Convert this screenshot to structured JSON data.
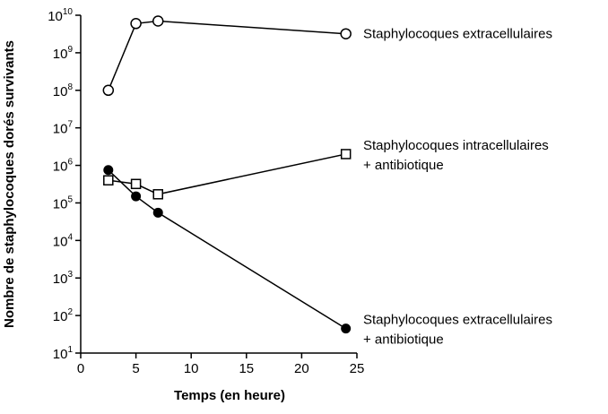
{
  "chart_data": {
    "type": "line",
    "xlabel": "Temps (en heure)",
    "ylabel": "Nombre de staphylocoques dorés survivants",
    "xlim": [
      0,
      25
    ],
    "xticks": [
      0,
      5,
      10,
      15,
      20,
      25
    ],
    "yscale": "log",
    "ylim": [
      10,
      10000000000
    ],
    "yticks": [
      {
        "base": "10",
        "exp": "1"
      },
      {
        "base": "10",
        "exp": "2"
      },
      {
        "base": "10",
        "exp": "3"
      },
      {
        "base": "10",
        "exp": "4"
      },
      {
        "base": "10",
        "exp": "5"
      },
      {
        "base": "10",
        "exp": "6"
      },
      {
        "base": "10",
        "exp": "7"
      },
      {
        "base": "10",
        "exp": "8"
      },
      {
        "base": "10",
        "exp": "9"
      },
      {
        "base": "10",
        "exp": "10"
      }
    ],
    "grid": false,
    "legend": "inline labels at series ends",
    "series": [
      {
        "name": "Staphylocoques extracellulaires",
        "marker": "open-circle",
        "x": [
          2.5,
          5,
          7,
          24
        ],
        "y": [
          100000000,
          6000000000,
          7000000000,
          3200000000
        ]
      },
      {
        "name": "Staphylocoques intracellulaires\n+ antibiotique",
        "marker": "open-square",
        "x": [
          2.5,
          5,
          7,
          24
        ],
        "y": [
          400000,
          320000,
          170000,
          2000000
        ]
      },
      {
        "name": "Staphylocoques extracellulaires\n+ antibiotique",
        "marker": "filled-circle",
        "x": [
          2.5,
          5,
          7,
          24
        ],
        "y": [
          750000,
          150000,
          55000,
          45
        ]
      }
    ]
  }
}
